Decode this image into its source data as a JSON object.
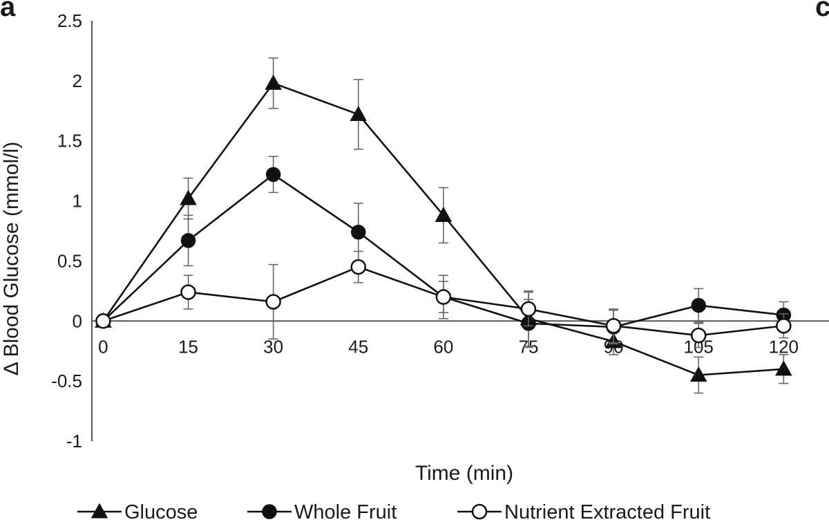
{
  "panel_label": "a",
  "panel_label_right": "c",
  "chart_data": {
    "type": "line",
    "title": "",
    "xlabel": "Time (min)",
    "ylabel": "Δ Blood Glucose (mmol/l)",
    "x": [
      0,
      15,
      30,
      45,
      60,
      75,
      90,
      105,
      120
    ],
    "x_tick_labels": [
      "0",
      "15",
      "30",
      "45",
      "60",
      "75",
      "90",
      "105",
      "120"
    ],
    "xlim": [
      -2,
      128
    ],
    "ylim": [
      -1,
      2.5
    ],
    "y_ticks": [
      -1,
      -0.5,
      0,
      0.5,
      1,
      1.5,
      2,
      2.5
    ],
    "y_tick_labels": [
      "-1",
      "-0.5",
      "0",
      "0.5",
      "1",
      "1.5",
      "2",
      "2.5"
    ],
    "grid": false,
    "legend_position": "bottom",
    "series": [
      {
        "name": "Glucose",
        "marker": "triangle",
        "values": [
          0,
          1.02,
          1.98,
          1.72,
          0.88,
          0.02,
          -0.17,
          -0.45,
          -0.4
        ],
        "errors": [
          0,
          0.17,
          0.21,
          0.29,
          0.23,
          0.23,
          0.11,
          0.15,
          0.12
        ]
      },
      {
        "name": "Whole Fruit",
        "marker": "filled-circle",
        "values": [
          0,
          0.67,
          1.22,
          0.74,
          0.2,
          -0.02,
          -0.05,
          0.13,
          0.05
        ],
        "errors": [
          0,
          0.21,
          0.15,
          0.24,
          0.18,
          0.2,
          0.14,
          0.14,
          0.11
        ]
      },
      {
        "name": "Nutrient Extracted Fruit",
        "marker": "open-circle",
        "values": [
          0,
          0.24,
          0.16,
          0.45,
          0.2,
          0.1,
          -0.04,
          -0.12,
          -0.04
        ],
        "errors": [
          0,
          0.14,
          0.31,
          0.13,
          0.13,
          0.14,
          0.14,
          0.1,
          0.1
        ]
      }
    ]
  }
}
